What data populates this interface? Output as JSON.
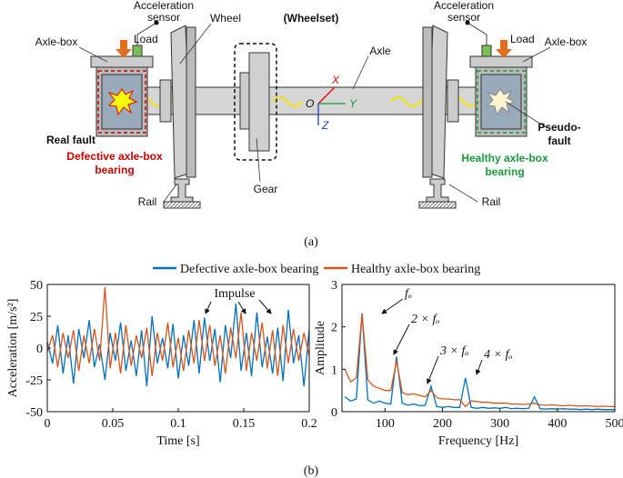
{
  "diagram": {
    "title": "(Wheelset)",
    "sensor_left": [
      "Acceleration",
      "sensor"
    ],
    "sensor_right": [
      "Acceleration",
      "sensor"
    ],
    "load_left": "Load",
    "load_right": "Load",
    "axlebox_left": "Axle-box",
    "axlebox_right": "Axle-box",
    "wheel": "Wheel",
    "axle": "Axle",
    "real_fault": "Real fault",
    "defective": [
      "Defective axle-box",
      "bearing"
    ],
    "pseudo_fault": [
      "Pseudo-",
      "fault"
    ],
    "healthy": [
      "Healthy axle-box",
      "bearing"
    ],
    "gear": "Gear",
    "rail_left": "Rail",
    "rail_right": "Rail",
    "axis_x": "X",
    "axis_y": "Y",
    "axis_z": "Z",
    "origin": "O",
    "caption": "(a)"
  },
  "caption_b": "(b)",
  "chart_data": [
    {
      "type": "line",
      "xlabel": "Time [s]",
      "ylabel": "Acceleration [m/s²]",
      "annotation": "Impulse",
      "x": [
        0,
        0.004,
        0.008,
        0.012,
        0.016,
        0.02,
        0.024,
        0.028,
        0.032,
        0.036,
        0.04,
        0.044,
        0.048,
        0.052,
        0.056,
        0.06,
        0.064,
        0.068,
        0.072,
        0.076,
        0.08,
        0.084,
        0.088,
        0.092,
        0.096,
        0.1,
        0.104,
        0.108,
        0.112,
        0.116,
        0.12,
        0.124,
        0.128,
        0.132,
        0.136,
        0.14,
        0.144,
        0.148,
        0.152,
        0.156,
        0.16,
        0.164,
        0.168,
        0.172,
        0.176,
        0.18,
        0.184,
        0.188,
        0.192,
        0.196,
        0.2
      ],
      "series": [
        {
          "name": "Defective axle-box bearing",
          "color": "#0072bd",
          "values": [
            5,
            -12,
            18,
            -20,
            10,
            -28,
            15,
            -8,
            22,
            -15,
            3,
            -25,
            12,
            -10,
            20,
            -18,
            6,
            -22,
            14,
            -30,
            25,
            -12,
            8,
            -16,
            19,
            -24,
            10,
            -14,
            22,
            -20,
            24,
            -10,
            15,
            -27,
            18,
            -8,
            35,
            -18,
            12,
            -22,
            28,
            -15,
            9,
            -20,
            16,
            -26,
            30,
            -12,
            10,
            -30,
            15
          ]
        },
        {
          "name": "Healthy axle-box bearing",
          "color": "#d95319",
          "values": [
            -3,
            10,
            -15,
            12,
            -8,
            14,
            -18,
            10,
            -12,
            15,
            -10,
            48,
            -16,
            12,
            -20,
            18,
            -14,
            10,
            -8,
            16,
            -22,
            12,
            -10,
            20,
            -15,
            8,
            -18,
            14,
            -12,
            22,
            -10,
            18,
            -14,
            10,
            -20,
            16,
            -8,
            28,
            -18,
            12,
            -10,
            20,
            -16,
            14,
            -22,
            18,
            -12,
            15,
            -10,
            12,
            -6
          ]
        }
      ],
      "xlim": [
        0,
        0.2
      ],
      "xticks": [
        0,
        0.05,
        0.1,
        0.15,
        0.2
      ],
      "ylim": [
        -50,
        50
      ],
      "yticks": [
        -50,
        -25,
        0,
        25,
        50
      ]
    },
    {
      "type": "line",
      "xlabel": "Frequency [Hz]",
      "ylabel": "Amplitude",
      "annotations": [
        "fₒ",
        "2 × fₒ",
        "3 × fₒ",
        "4 × fₒ"
      ],
      "x": [
        30,
        40,
        50,
        60,
        70,
        80,
        90,
        100,
        110,
        120,
        130,
        140,
        150,
        160,
        170,
        180,
        190,
        200,
        210,
        220,
        230,
        240,
        250,
        260,
        270,
        280,
        290,
        300,
        310,
        320,
        330,
        340,
        350,
        360,
        370,
        380,
        390,
        400,
        410,
        420,
        430,
        440,
        450,
        460,
        470,
        480,
        490,
        500
      ],
      "series": [
        {
          "name": "Defective axle-box bearing",
          "color": "#0072bd",
          "values": [
            0.35,
            0.25,
            0.3,
            2.32,
            0.28,
            0.2,
            0.25,
            0.2,
            0.18,
            1.3,
            0.2,
            0.15,
            0.18,
            0.14,
            0.15,
            0.6,
            0.12,
            0.1,
            0.12,
            0.1,
            0.1,
            0.8,
            0.1,
            0.08,
            0.1,
            0.08,
            0.09,
            0.08,
            0.1,
            0.07,
            0.08,
            0.07,
            0.08,
            0.35,
            0.07,
            0.06,
            0.07,
            0.06,
            0.07,
            0.06,
            0.06,
            0.05,
            0.06,
            0.05,
            0.06,
            0.05,
            0.05,
            0.05
          ]
        },
        {
          "name": "Healthy axle-box bearing",
          "color": "#d95319",
          "values": [
            1.0,
            0.7,
            0.8,
            2.3,
            0.75,
            0.6,
            0.55,
            0.5,
            0.5,
            1.2,
            0.45,
            0.4,
            0.42,
            0.38,
            0.35,
            0.5,
            0.33,
            0.3,
            0.3,
            0.28,
            0.28,
            0.12,
            0.25,
            0.24,
            0.22,
            0.22,
            0.2,
            0.2,
            0.2,
            0.18,
            0.18,
            0.17,
            0.18,
            0.2,
            0.16,
            0.15,
            0.16,
            0.15,
            0.14,
            0.15,
            0.14,
            0.13,
            0.14,
            0.13,
            0.12,
            0.13,
            0.12,
            0.12
          ]
        }
      ],
      "xlim": [
        25,
        500
      ],
      "xticks": [
        100,
        200,
        300,
        400,
        500
      ],
      "ylim": [
        0,
        3
      ],
      "yticks": [
        0,
        1,
        2,
        3
      ]
    }
  ]
}
